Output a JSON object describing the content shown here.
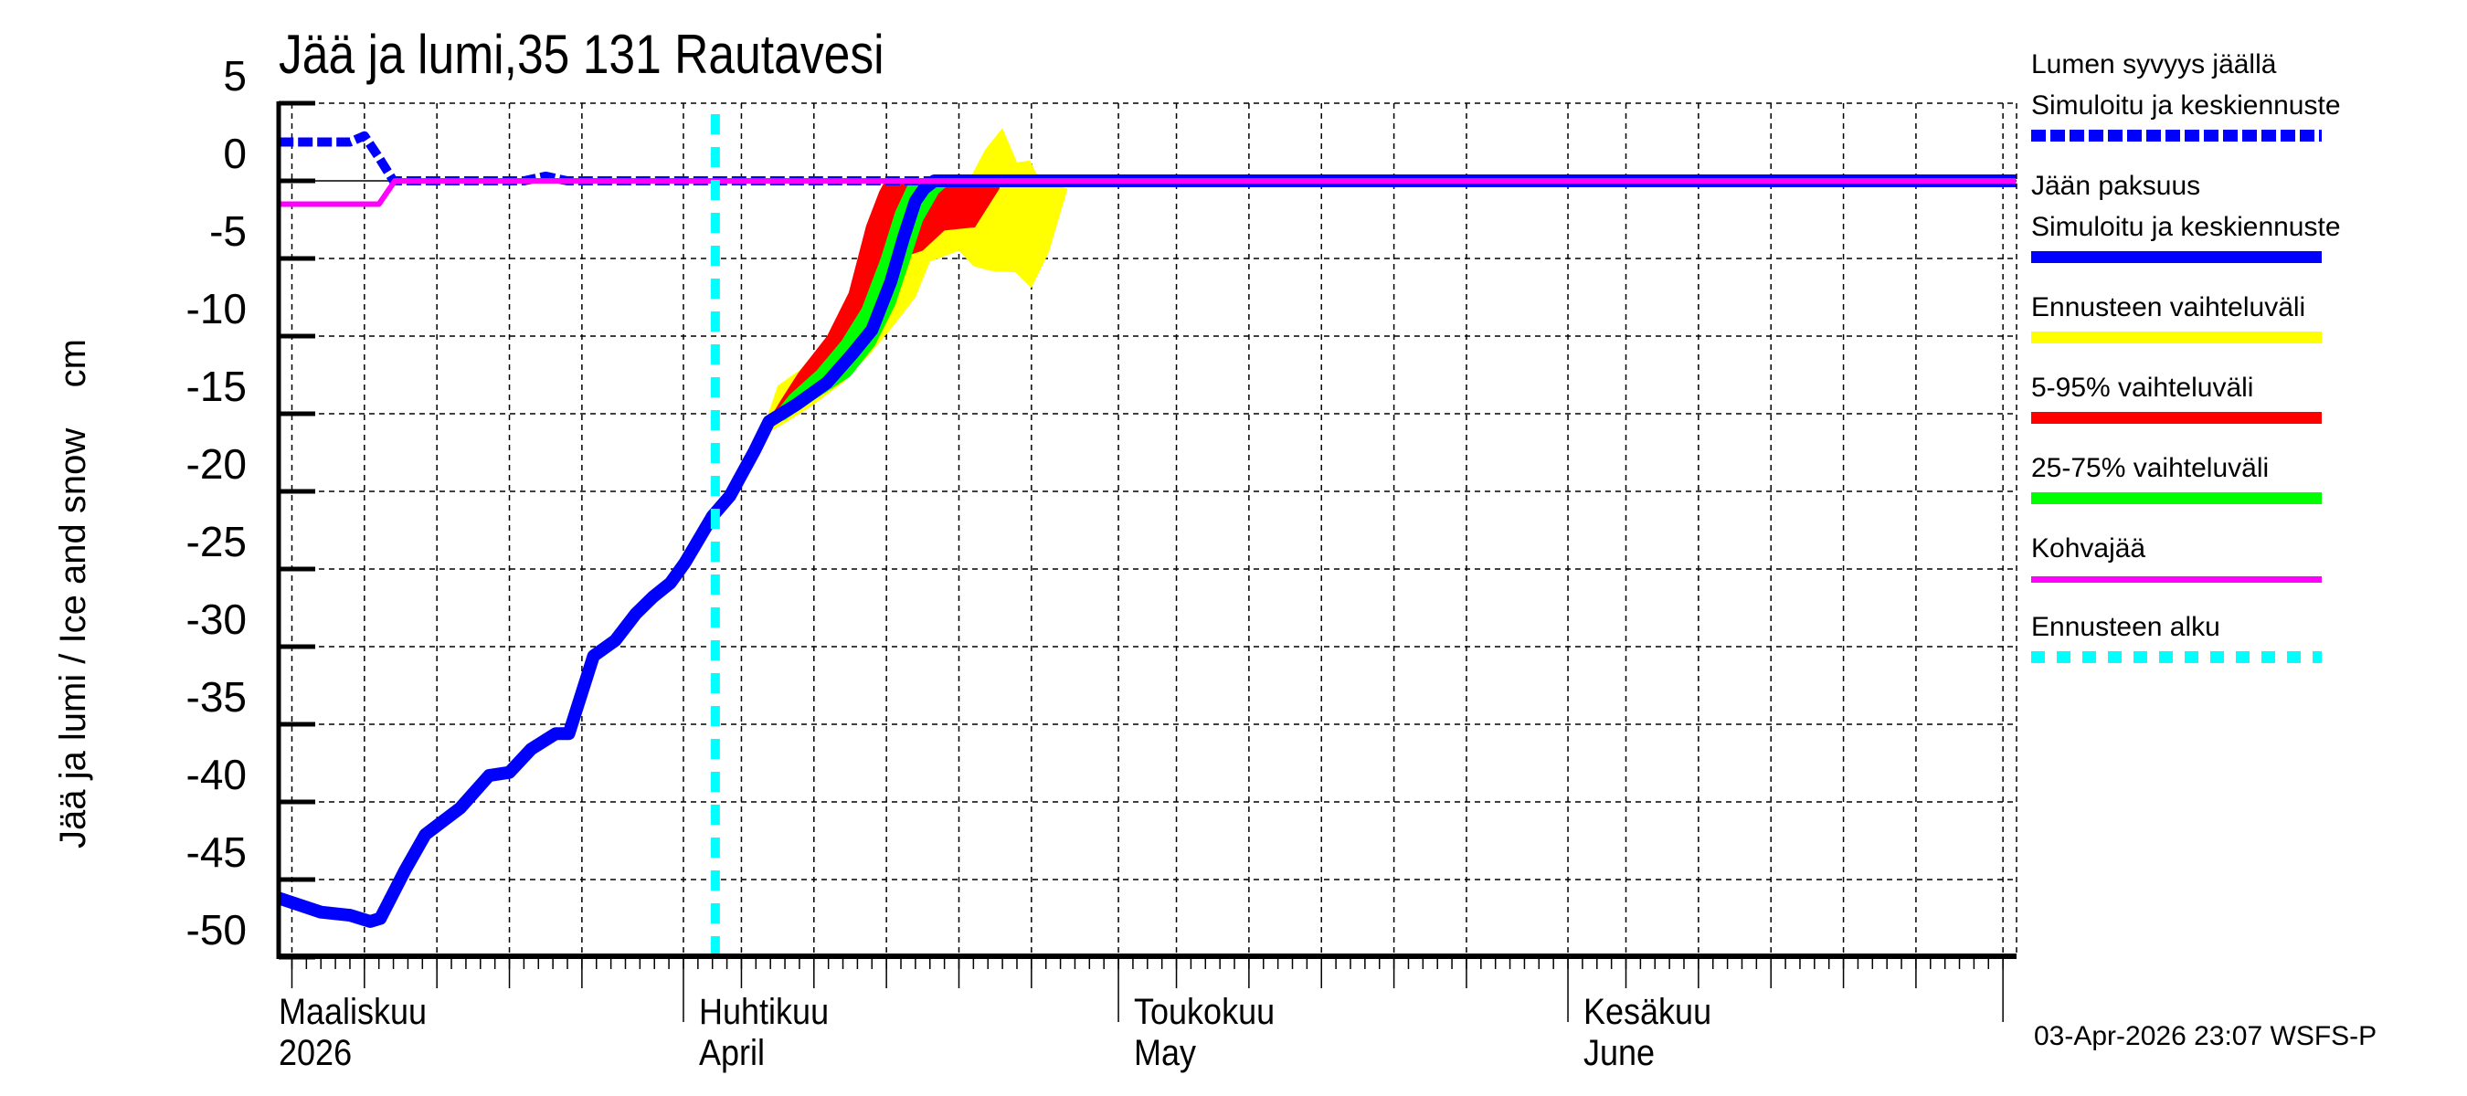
{
  "chart_data": {
    "type": "area",
    "title": "Jää ja lumi,35 131 Rautavesi",
    "ylabel": "Jää ja lumi / Ice and snow    cm",
    "xlabel": "",
    "ylim": [
      -50,
      5
    ],
    "yticks": [
      5,
      0,
      -5,
      -10,
      -15,
      -20,
      -25,
      -30,
      -35,
      -40,
      -45,
      -50
    ],
    "grid": true,
    "legend_position": "right",
    "x_unit": "days since 1 Mar 2026",
    "xlim": [
      3.1,
      122.9
    ],
    "month_ticks": [
      {
        "day": 0,
        "label_fi": "Maaliskuu",
        "label_en": "2026"
      },
      {
        "day": 31,
        "label_fi": "Huhtikuu",
        "label_en": "April"
      },
      {
        "day": 61,
        "label_fi": "Toukokuu",
        "label_en": "May"
      },
      {
        "day": 92,
        "label_fi": "Kesäkuu",
        "label_en": "June"
      },
      {
        "day": 122,
        "label_fi": "",
        "label_en": ""
      }
    ],
    "forecast_start_day": 33,
    "series": [
      {
        "name": "Lumen syvyys jäällä – Simuloitu ja keskiennuste",
        "color": "#0000ff",
        "style": "dashed",
        "points": [
          [
            3.1,
            2.5
          ],
          [
            8,
            2.5
          ],
          [
            9,
            2.9
          ],
          [
            10,
            1.5
          ],
          [
            11,
            0
          ],
          [
            20,
            0
          ],
          [
            21.5,
            0.3
          ],
          [
            23,
            0
          ],
          [
            122.9,
            0
          ]
        ]
      },
      {
        "name": "Jään paksuus – Simuloitu ja keskiennuste",
        "color": "#0000ff",
        "style": "solid",
        "points": [
          [
            3.1,
            -46.2
          ],
          [
            6,
            -47.1
          ],
          [
            8,
            -47.3
          ],
          [
            9.4,
            -47.7
          ],
          [
            10.1,
            -47.5
          ],
          [
            11.8,
            -44.4
          ],
          [
            13.2,
            -42.1
          ],
          [
            15.6,
            -40.4
          ],
          [
            17.6,
            -38.3
          ],
          [
            19,
            -38.1
          ],
          [
            20.5,
            -36.6
          ],
          [
            22.2,
            -35.6
          ],
          [
            23.1,
            -35.6
          ],
          [
            24.8,
            -30.6
          ],
          [
            26.3,
            -29.6
          ],
          [
            27.7,
            -27.9
          ],
          [
            28.9,
            -26.8
          ],
          [
            30.1,
            -25.9
          ],
          [
            31.1,
            -24.6
          ],
          [
            33,
            -21.6
          ],
          [
            34.2,
            -20.3
          ],
          [
            35.9,
            -17.4
          ],
          [
            36.9,
            -15.5
          ],
          [
            38.8,
            -14.4
          ],
          [
            40.9,
            -13.0
          ],
          [
            42.6,
            -11.2
          ],
          [
            44,
            -9.6
          ],
          [
            45.3,
            -6.5
          ],
          [
            46.2,
            -3.6
          ],
          [
            47,
            -1.3
          ],
          [
            47.6,
            -0.5
          ],
          [
            48.3,
            0
          ],
          [
            122.9,
            0
          ]
        ]
      },
      {
        "name": "Kohvajää",
        "color": "#ff00ff",
        "style": "solid",
        "points": [
          [
            3.1,
            -1.5
          ],
          [
            10,
            -1.5
          ],
          [
            11.1,
            0
          ],
          [
            122.9,
            0
          ]
        ]
      }
    ],
    "bands": [
      {
        "name": "Ennusteen vaihteluväli",
        "color": "#ffff00",
        "upper": [
          [
            36.3,
            -16.5
          ],
          [
            37.5,
            -13.2
          ],
          [
            39,
            -12.2
          ],
          [
            40.5,
            -10.6
          ],
          [
            42,
            -9.0
          ],
          [
            43.5,
            -6.2
          ],
          [
            44.8,
            -3.0
          ],
          [
            45.6,
            -0.8
          ],
          [
            46.2,
            0
          ],
          [
            49.5,
            0
          ],
          [
            50.9,
            0.4
          ],
          [
            51.8,
            2.0
          ],
          [
            53,
            3.4
          ],
          [
            54,
            1.2
          ],
          [
            54.9,
            1.3
          ],
          [
            55.6,
            0
          ],
          [
            57.5,
            -0.5
          ]
        ],
        "lower": [
          [
            57.5,
            -0.5
          ],
          [
            56.2,
            -4.6
          ],
          [
            55,
            -6.9
          ],
          [
            53.9,
            -5.9
          ],
          [
            52.2,
            -5.8
          ],
          [
            51,
            -5.5
          ],
          [
            50,
            -4.5
          ],
          [
            48,
            -5.2
          ],
          [
            47,
            -7.5
          ],
          [
            45.6,
            -9.2
          ],
          [
            44,
            -11.0
          ],
          [
            42,
            -13.0
          ],
          [
            40,
            -14.4
          ],
          [
            38,
            -15.6
          ],
          [
            36.3,
            -16.5
          ]
        ]
      },
      {
        "name": "5-95% vaihteluväli",
        "color": "#ff0000",
        "upper": [
          [
            36.4,
            -16.2
          ],
          [
            37.6,
            -14.3
          ],
          [
            38.9,
            -12.4
          ],
          [
            40.9,
            -10.0
          ],
          [
            42.4,
            -7.2
          ],
          [
            43.6,
            -2.9
          ],
          [
            44.5,
            -0.7
          ],
          [
            44.9,
            0
          ],
          [
            52.8,
            0
          ],
          [
            52.8,
            -0.5
          ],
          [
            51.1,
            -3.0
          ],
          [
            48.2,
            -3.2
          ],
          [
            46.4,
            -1.7
          ],
          [
            45.2,
            -0.2
          ]
        ],
        "lower": [
          [
            52.8,
            -0.5
          ],
          [
            52,
            -1.5
          ],
          [
            51,
            -3.0
          ],
          [
            49,
            -3.2
          ],
          [
            47.5,
            -4.5
          ],
          [
            46.2,
            -4.9
          ],
          [
            45,
            -6.8
          ],
          [
            44.2,
            -8.4
          ],
          [
            42.5,
            -11.2
          ],
          [
            40,
            -13.5
          ],
          [
            37.5,
            -15.4
          ],
          [
            36.4,
            -16.2
          ]
        ]
      },
      {
        "name": "25-75% vaihteluväli",
        "color": "#00ff00",
        "upper": [
          [
            36.6,
            -15.8
          ],
          [
            38.3,
            -13.8
          ],
          [
            40.2,
            -12.2
          ],
          [
            41.9,
            -10.3
          ],
          [
            43.3,
            -8.2
          ],
          [
            44.6,
            -5.0
          ],
          [
            45.6,
            -2.0
          ],
          [
            46.6,
            0
          ],
          [
            49.6,
            0
          ]
        ],
        "lower": [
          [
            49.6,
            0
          ],
          [
            48.6,
            -0.8
          ],
          [
            47.5,
            -2.6
          ],
          [
            46.6,
            -5.2
          ],
          [
            45.6,
            -8.0
          ],
          [
            44.2,
            -10.6
          ],
          [
            42.5,
            -12.6
          ],
          [
            40.2,
            -14.0
          ],
          [
            38,
            -15.4
          ],
          [
            36.6,
            -15.8
          ]
        ]
      }
    ]
  },
  "legend": {
    "items": [
      {
        "title": "Lumen syvyys jäällä",
        "subtitle": "Simuloitu ja keskiennuste",
        "color": "#0000ff",
        "style": "dashed"
      },
      {
        "title": "Jään paksuus",
        "subtitle": "Simuloitu ja keskiennuste",
        "color": "#0000ff",
        "style": "solid"
      },
      {
        "title": "Ennusteen vaihteluväli",
        "subtitle": "",
        "color": "#ffff00",
        "style": "solid"
      },
      {
        "title": "5-95% vaihteluväli",
        "subtitle": "",
        "color": "#ff0000",
        "style": "solid"
      },
      {
        "title": "25-75% vaihteluväli",
        "subtitle": "",
        "color": "#00ff00",
        "style": "solid"
      },
      {
        "title": "Kohvajää",
        "subtitle": "",
        "color": "#ff00ff",
        "style": "thin"
      },
      {
        "title": "Ennusteen alku",
        "subtitle": "",
        "color": "#00ffff",
        "style": "dotted"
      }
    ]
  },
  "footer": {
    "timestamp": "03-Apr-2026 23:07 WSFS-P"
  }
}
